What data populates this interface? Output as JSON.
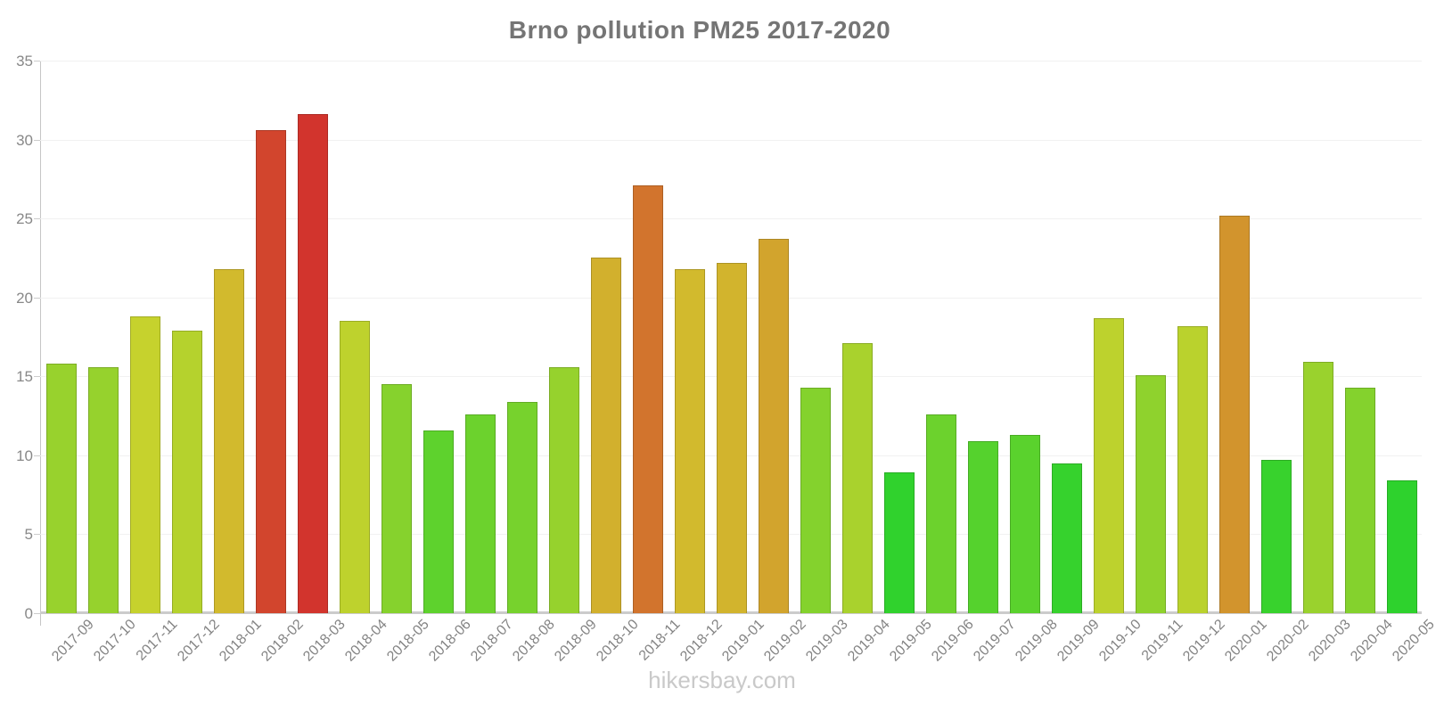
{
  "title": {
    "text": "Brno pollution PM25 2017-2020",
    "color": "#757575"
  },
  "watermark": {
    "text": "hikersbay.com",
    "color": "#c9c9c9"
  },
  "chart_data": {
    "type": "bar",
    "title": "Brno pollution PM25 2017-2020",
    "xlabel": "",
    "ylabel": "",
    "ylim": [
      0,
      35
    ],
    "yticks": [
      0,
      5,
      10,
      15,
      20,
      25,
      30,
      35
    ],
    "grid": true,
    "legend": false,
    "categories": [
      "2017-09",
      "2017-10",
      "2017-11",
      "2017-12",
      "2018-01",
      "2018-02",
      "2018-03",
      "2018-04",
      "2018-05",
      "2018-06",
      "2018-07",
      "2018-08",
      "2018-09",
      "2018-10",
      "2018-11",
      "2018-12",
      "2019-01",
      "2019-02",
      "2019-03",
      "2019-04",
      "2019-05",
      "2019-06",
      "2019-07",
      "2019-08",
      "2019-09",
      "2019-10",
      "2019-11",
      "2019-12",
      "2020-01",
      "2020-02",
      "2020-03",
      "2020-04",
      "2020-05"
    ],
    "values": [
      15.8,
      15.6,
      18.8,
      17.9,
      21.8,
      30.6,
      31.6,
      18.5,
      14.5,
      11.6,
      12.6,
      13.4,
      15.6,
      22.5,
      27.1,
      21.8,
      22.2,
      23.7,
      14.3,
      17.1,
      8.9,
      12.6,
      10.9,
      11.3,
      9.5,
      18.7,
      15.1,
      18.2,
      25.2,
      9.7,
      15.9,
      14.3,
      8.4
    ],
    "bar_colors": [
      "#98D22D",
      "#96D22D",
      "#C6D22D",
      "#B5D22D",
      "#D2BA2D",
      "#D2452D",
      "#D2342D",
      "#BED22D",
      "#86D22D",
      "#5ED22D",
      "#6CD22D",
      "#77D22D",
      "#96D22D",
      "#D2B02D",
      "#D2742D",
      "#D2BA2D",
      "#D2B42D",
      "#D2A42D",
      "#84D22D",
      "#A9D22D",
      "#30D22D",
      "#6CD22D",
      "#55D22D",
      "#5AD22D",
      "#36D22D",
      "#BDD22D",
      "#8FD22D",
      "#BAD22D",
      "#D2942D",
      "#38D22D",
      "#9AD22D",
      "#84D22D",
      "#2ED22D"
    ],
    "axis_color": "#c6c6c6",
    "grid_color": "#f1f1f1",
    "tick_label_color": "#888888"
  }
}
